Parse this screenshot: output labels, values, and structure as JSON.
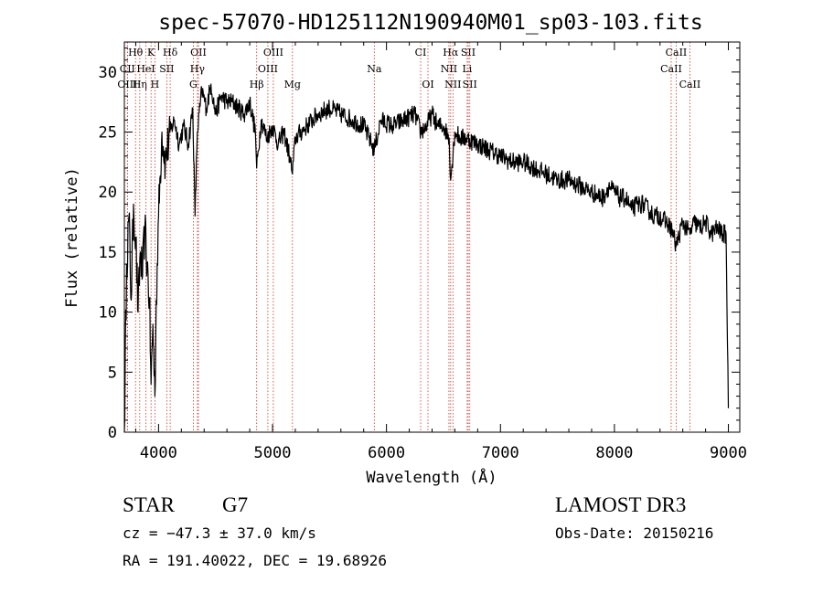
{
  "chart_data": {
    "type": "line",
    "title": "spec-57070-HD125112N190940M01_sp03-103.fits",
    "xlabel": "Wavelength (Å)",
    "ylabel": "Flux (relative)",
    "xlim": [
      3700,
      9100
    ],
    "ylim": [
      0,
      32.5
    ],
    "xticks": [
      4000,
      5000,
      6000,
      7000,
      8000,
      9000
    ],
    "yticks": [
      0,
      5,
      10,
      15,
      20,
      25,
      30
    ],
    "lines": [
      {
        "label": "Hθ",
        "x": 3798,
        "row": 0
      },
      {
        "label": "K",
        "x": 3934,
        "row": 0
      },
      {
        "label": "Hδ",
        "x": 4102,
        "row": 0
      },
      {
        "label": "OII",
        "x": 4350,
        "row": 0
      },
      {
        "label": "OIII",
        "x": 5007,
        "row": 0
      },
      {
        "label": "CI",
        "x": 6300,
        "row": 0
      },
      {
        "label": "Hα",
        "x": 6563,
        "row": 0
      },
      {
        "label": "SII",
        "x": 6717,
        "row": 0
      },
      {
        "label": "CaII",
        "x": 8542,
        "row": 0
      },
      {
        "label": "CII",
        "x": 3727,
        "row": 1
      },
      {
        "label": "HeI",
        "x": 3889,
        "row": 1
      },
      {
        "label": "SII",
        "x": 4072,
        "row": 1
      },
      {
        "label": "Hγ",
        "x": 4341,
        "row": 1
      },
      {
        "label": "OIII",
        "x": 4959,
        "row": 1
      },
      {
        "label": "Na",
        "x": 5893,
        "row": 1
      },
      {
        "label": "NII",
        "x": 6548,
        "row": 1
      },
      {
        "label": "Li",
        "x": 6708,
        "row": 1
      },
      {
        "label": "CaII",
        "x": 8498,
        "row": 1
      },
      {
        "label": "OIII",
        "x": 3727,
        "row": 2
      },
      {
        "label": "Hη",
        "x": 3835,
        "row": 2
      },
      {
        "label": "H",
        "x": 3968,
        "row": 2
      },
      {
        "label": "G",
        "x": 4305,
        "row": 2
      },
      {
        "label": "Hβ",
        "x": 4861,
        "row": 2
      },
      {
        "label": "Mg",
        "x": 5175,
        "row": 2
      },
      {
        "label": "OI",
        "x": 6364,
        "row": 2
      },
      {
        "label": "NII",
        "x": 6583,
        "row": 2
      },
      {
        "label": "SII",
        "x": 6731,
        "row": 2
      },
      {
        "label": "CaII",
        "x": 8662,
        "row": 2
      }
    ],
    "series": [
      {
        "name": "flux",
        "x": [
          3700,
          3720,
          3740,
          3760,
          3780,
          3800,
          3820,
          3840,
          3860,
          3880,
          3900,
          3920,
          3934,
          3950,
          3968,
          3980,
          4000,
          4030,
          4060,
          4100,
          4140,
          4180,
          4220,
          4260,
          4300,
          4320,
          4340,
          4380,
          4420,
          4460,
          4500,
          4550,
          4600,
          4650,
          4700,
          4750,
          4800,
          4850,
          4861,
          4900,
          4950,
          5000,
          5050,
          5100,
          5150,
          5175,
          5200,
          5300,
          5400,
          5500,
          5600,
          5700,
          5800,
          5893,
          5950,
          6050,
          6150,
          6250,
          6300,
          6350,
          6400,
          6450,
          6500,
          6550,
          6563,
          6600,
          6650,
          6700,
          6800,
          6900,
          7000,
          7100,
          7200,
          7300,
          7400,
          7500,
          7600,
          7700,
          7800,
          7900,
          7950,
          8000,
          8050,
          8100,
          8150,
          8200,
          8250,
          8300,
          8350,
          8400,
          8450,
          8498,
          8542,
          8600,
          8662,
          8700,
          8750,
          8800,
          8850,
          8900,
          8950,
          8980,
          9000
        ],
        "y": [
          0.0,
          14.0,
          18.0,
          11.0,
          19.0,
          16.0,
          10.0,
          15.0,
          13.0,
          17.0,
          14.0,
          11.0,
          4.0,
          9.0,
          3.0,
          11.0,
          18.0,
          25.0,
          22.5,
          25.0,
          26.0,
          24.0,
          25.5,
          24.0,
          27.0,
          18.0,
          25.0,
          28.5,
          27.0,
          29.0,
          26.5,
          28.0,
          27.5,
          27.5,
          27.0,
          26.5,
          27.5,
          25.0,
          22.0,
          26.0,
          24.5,
          25.5,
          24.0,
          25.0,
          23.0,
          21.5,
          24.5,
          25.5,
          26.5,
          27.0,
          26.5,
          26.0,
          25.5,
          23.5,
          26.0,
          25.5,
          26.0,
          26.5,
          25.0,
          25.5,
          26.5,
          25.5,
          25.5,
          24.5,
          21.0,
          25.0,
          24.5,
          24.5,
          24.0,
          23.5,
          23.0,
          22.5,
          22.5,
          22.0,
          21.5,
          21.0,
          21.0,
          20.5,
          20.0,
          19.5,
          20.5,
          20.0,
          19.5,
          19.5,
          18.5,
          19.0,
          19.0,
          18.5,
          18.0,
          18.0,
          17.5,
          17.0,
          15.5,
          17.5,
          16.5,
          17.5,
          17.0,
          17.5,
          16.5,
          17.0,
          16.5,
          16.5,
          2.0
        ]
      }
    ]
  },
  "info": {
    "object_class": "STAR",
    "subclass": "G7",
    "survey": "LAMOST DR3",
    "cz": "cz = −47.3 ± 37.0 km/s",
    "obs_date": "Obs-Date: 20150216",
    "coords": "RA = 191.40022, DEC =  19.68926"
  }
}
